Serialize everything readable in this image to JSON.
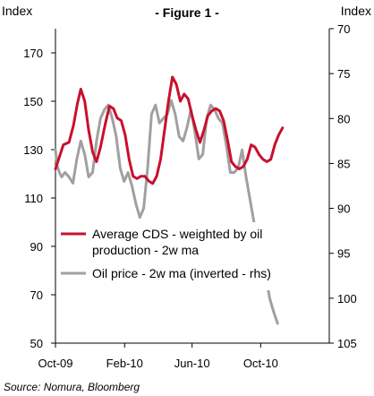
{
  "header": {
    "title": "- Figure 1 -",
    "left_axis_unit": "Index",
    "right_axis_unit": "Index"
  },
  "source": "Source: Nomura, Bloomberg",
  "chart_data": {
    "type": "line",
    "title": "Figure 1",
    "xlabel": "",
    "ylabel": "Index",
    "y2label": "Index",
    "x_ticks": [
      "Oct-09",
      "Feb-10",
      "Jun-10",
      "Oct-10"
    ],
    "x_tick_dates": [
      "2009-10-01",
      "2010-02-01",
      "2010-06-01",
      "2010-10-01"
    ],
    "x_range": [
      "2009-10-01",
      "2011-01-31"
    ],
    "ylim": [
      50,
      180
    ],
    "y_ticks": [
      50,
      70,
      90,
      110,
      130,
      150,
      170
    ],
    "y2lim": [
      70,
      105
    ],
    "y2_ticks": [
      70,
      75,
      80,
      85,
      90,
      95,
      100,
      105
    ],
    "y2_inverted": true,
    "grid": false,
    "legend_position": "lower-left",
    "colors": {
      "cds": "#c8102e",
      "oil": "#a0a0a0"
    },
    "series": [
      {
        "name": "Average CDS - weighted by oil production - 2w ma",
        "axis": "left",
        "color": "#c8102e",
        "points": [
          [
            "2009-10-01",
            122
          ],
          [
            "2009-10-08",
            127
          ],
          [
            "2009-10-15",
            132
          ],
          [
            "2009-10-25",
            133
          ],
          [
            "2009-11-02",
            140
          ],
          [
            "2009-11-09",
            149
          ],
          [
            "2009-11-15",
            155
          ],
          [
            "2009-11-22",
            150
          ],
          [
            "2009-11-29",
            138
          ],
          [
            "2009-12-06",
            129
          ],
          [
            "2009-12-13",
            125
          ],
          [
            "2009-12-20",
            131
          ],
          [
            "2009-12-28",
            140
          ],
          [
            "2010-01-05",
            148
          ],
          [
            "2010-01-12",
            147
          ],
          [
            "2010-01-19",
            143
          ],
          [
            "2010-01-26",
            142
          ],
          [
            "2010-02-02",
            136
          ],
          [
            "2010-02-09",
            126
          ],
          [
            "2010-02-16",
            119
          ],
          [
            "2010-02-23",
            118
          ],
          [
            "2010-03-02",
            119
          ],
          [
            "2010-03-09",
            119
          ],
          [
            "2010-03-16",
            117
          ],
          [
            "2010-03-23",
            116
          ],
          [
            "2010-03-30",
            119
          ],
          [
            "2010-04-06",
            126
          ],
          [
            "2010-04-13",
            138
          ],
          [
            "2010-04-20",
            150
          ],
          [
            "2010-04-27",
            160
          ],
          [
            "2010-05-04",
            157
          ],
          [
            "2010-05-11",
            150
          ],
          [
            "2010-05-18",
            153
          ],
          [
            "2010-05-25",
            151
          ],
          [
            "2010-06-01",
            144
          ],
          [
            "2010-06-08",
            138
          ],
          [
            "2010-06-15",
            133
          ],
          [
            "2010-06-22",
            138
          ],
          [
            "2010-06-29",
            144
          ],
          [
            "2010-07-06",
            146
          ],
          [
            "2010-07-13",
            147
          ],
          [
            "2010-07-20",
            146
          ],
          [
            "2010-07-27",
            142
          ],
          [
            "2010-08-03",
            134
          ],
          [
            "2010-08-10",
            125
          ],
          [
            "2010-08-17",
            123
          ],
          [
            "2010-08-24",
            122
          ],
          [
            "2010-08-31",
            123
          ],
          [
            "2010-09-07",
            126
          ],
          [
            "2010-09-14",
            132
          ],
          [
            "2010-09-21",
            131
          ],
          [
            "2010-09-28",
            128
          ],
          [
            "2010-10-05",
            126
          ],
          [
            "2010-10-12",
            125
          ],
          [
            "2010-10-19",
            126
          ],
          [
            "2010-10-26",
            132
          ],
          [
            "2010-11-02",
            136
          ],
          [
            "2010-11-09",
            139
          ]
        ]
      },
      {
        "name": "Oil price - 2w ma (inverted - rhs)",
        "axis": "right",
        "color": "#a0a0a0",
        "points": [
          [
            "2009-10-01",
            83.5
          ],
          [
            "2009-10-04",
            85.3
          ],
          [
            "2009-10-08",
            86
          ],
          [
            "2009-10-12",
            86.5
          ],
          [
            "2009-10-18",
            86
          ],
          [
            "2009-10-25",
            86.5
          ],
          [
            "2009-11-01",
            87.2
          ],
          [
            "2009-11-08",
            84.5
          ],
          [
            "2009-11-15",
            82.5
          ],
          [
            "2009-11-22",
            84
          ],
          [
            "2009-11-29",
            86.5
          ],
          [
            "2009-12-06",
            86
          ],
          [
            "2009-12-13",
            82.5
          ],
          [
            "2009-12-20",
            80
          ],
          [
            "2009-12-27",
            79
          ],
          [
            "2010-01-03",
            78.5
          ],
          [
            "2010-01-10",
            80
          ],
          [
            "2010-01-17",
            82
          ],
          [
            "2010-01-24",
            85.5
          ],
          [
            "2010-01-31",
            87
          ],
          [
            "2010-02-07",
            86
          ],
          [
            "2010-02-14",
            87.5
          ],
          [
            "2010-02-21",
            89.5
          ],
          [
            "2010-02-28",
            91
          ],
          [
            "2010-03-07",
            90
          ],
          [
            "2010-03-14",
            85.5
          ],
          [
            "2010-03-21",
            79.5
          ],
          [
            "2010-03-28",
            78.5
          ],
          [
            "2010-04-04",
            80.5
          ],
          [
            "2010-04-11",
            80
          ],
          [
            "2010-04-18",
            79.5
          ],
          [
            "2010-04-25",
            78
          ],
          [
            "2010-05-02",
            79.5
          ],
          [
            "2010-05-09",
            82
          ],
          [
            "2010-05-16",
            82.5
          ],
          [
            "2010-05-23",
            81
          ],
          [
            "2010-05-30",
            79
          ],
          [
            "2010-06-06",
            81.5
          ],
          [
            "2010-06-13",
            84.5
          ],
          [
            "2010-06-20",
            84
          ],
          [
            "2010-06-27",
            80
          ],
          [
            "2010-07-04",
            78.5
          ],
          [
            "2010-07-11",
            79
          ],
          [
            "2010-07-18",
            80
          ],
          [
            "2010-07-25",
            80.5
          ],
          [
            "2010-08-01",
            83
          ],
          [
            "2010-08-08",
            86
          ],
          [
            "2010-08-15",
            86
          ],
          [
            "2010-08-22",
            85.5
          ],
          [
            "2010-08-29",
            83.5
          ],
          [
            "2010-09-05",
            86.5
          ],
          [
            "2010-09-12",
            89
          ],
          [
            "2010-09-19",
            91.5
          ],
          [
            "2010-09-26",
            94.5
          ],
          [
            "2010-10-03",
            96
          ],
          [
            "2010-10-10",
            97.5
          ],
          [
            "2010-10-17",
            100
          ],
          [
            "2010-10-24",
            101.5
          ],
          [
            "2010-10-31",
            102.8
          ]
        ]
      }
    ]
  }
}
